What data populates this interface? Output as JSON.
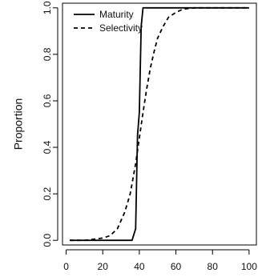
{
  "chart_data": {
    "type": "line",
    "title": "",
    "xlabel": "",
    "ylabel": "Proportion",
    "xlim": [
      -2,
      104
    ],
    "ylim": [
      -0.02,
      1.02
    ],
    "x_ticks": [
      0,
      20,
      40,
      60,
      80,
      100
    ],
    "y_ticks": [
      0.0,
      0.2,
      0.4,
      0.6,
      0.8,
      1.0
    ],
    "x_tick_labels": [
      "0",
      "20",
      "40",
      "60",
      "80",
      "100"
    ],
    "y_tick_labels": [
      "0.0",
      "0.2",
      "0.4",
      "0.6",
      "0.8",
      "1.0"
    ],
    "grid": false,
    "legend_position": "top-left",
    "series": [
      {
        "name": "Maturity",
        "line_style": "solid",
        "color": "#000000",
        "x": [
          2,
          36,
          38,
          39,
          40,
          41,
          42,
          43,
          50,
          60,
          80,
          100
        ],
        "y": [
          0.0,
          0.0,
          0.05,
          0.45,
          0.55,
          0.92,
          1.0,
          1.0,
          1.0,
          1.0,
          1.0,
          1.0
        ]
      },
      {
        "name": "Selectivity",
        "line_style": "dashed",
        "color": "#000000",
        "x": [
          2,
          10,
          20,
          24,
          28,
          32,
          35,
          38,
          40,
          42,
          44,
          46,
          48,
          50,
          53,
          56,
          60,
          64,
          70,
          80,
          100
        ],
        "y": [
          0.0,
          0.0,
          0.01,
          0.02,
          0.05,
          0.12,
          0.2,
          0.33,
          0.44,
          0.55,
          0.65,
          0.74,
          0.81,
          0.87,
          0.92,
          0.96,
          0.98,
          0.995,
          1.0,
          1.0,
          1.0
        ]
      }
    ]
  }
}
